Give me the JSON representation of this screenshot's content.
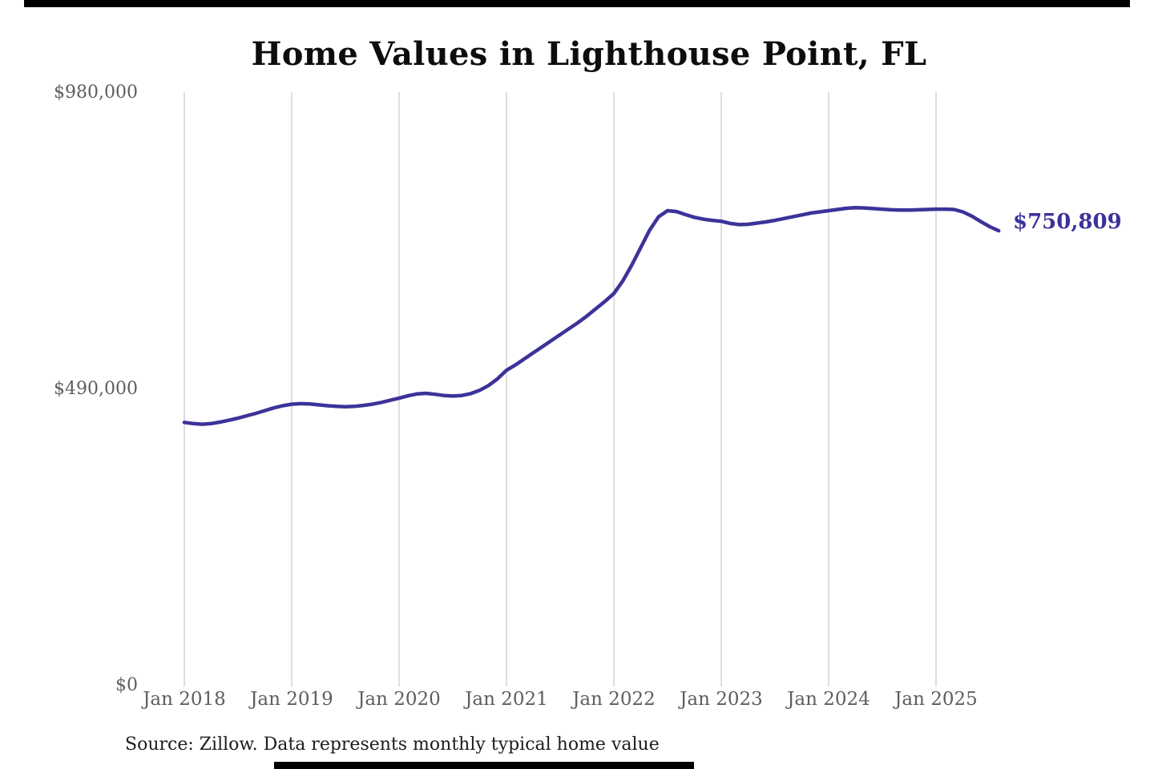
{
  "title": "Home Values in Lighthouse Point, FL",
  "source_note": "Source: Zillow. Data represents monthly typical home value",
  "end_label": "$750,809",
  "colors": {
    "line": "#3c3399",
    "grid": "#cccccc",
    "axis_text": "#5e5e5e",
    "title_text": "#0d0d0d",
    "source_text": "#1c1c1c",
    "border_bars": "#000000"
  },
  "chart_data": {
    "type": "line",
    "title": "Home Values in Lighthouse Point, FL",
    "x_tick_labels": [
      "Jan 2018",
      "Jan 2019",
      "Jan 2020",
      "Jan 2021",
      "Jan 2022",
      "Jan 2023",
      "Jan 2024",
      "Jan 2025"
    ],
    "y_tick_labels": [
      "$0",
      "$490,000",
      "$980,000"
    ],
    "y_ticks": [
      0,
      490000,
      980000
    ],
    "ylim": [
      0,
      980000
    ],
    "grid": "vertical-only",
    "legend": "none",
    "end_value": 750809,
    "end_value_label": "$750,809",
    "source": "Zillow",
    "series": [
      {
        "name": "Typical home value",
        "unit": "USD",
        "frequency": "monthly",
        "start": "2018-01",
        "end": "2025-08",
        "values": [
          434000,
          432000,
          431000,
          432000,
          434500,
          437500,
          441000,
          445000,
          449000,
          453500,
          458000,
          461500,
          464000,
          465000,
          464500,
          463000,
          461500,
          460500,
          460000,
          460500,
          462000,
          464000,
          467000,
          470500,
          474000,
          478000,
          481000,
          482000,
          480500,
          478500,
          477500,
          478500,
          481500,
          487000,
          495000,
          506000,
          520000,
          529000,
          539000,
          549000,
          559000,
          569000,
          579000,
          589000,
          599000,
          610000,
          622000,
          634000,
          647000,
          668000,
          694000,
          723000,
          752000,
          774000,
          784000,
          782500,
          777500,
          773000,
          770000,
          768000,
          766500,
          763000,
          761000,
          761500,
          763500,
          765500,
          768000,
          771000,
          774000,
          777000,
          780000,
          782000,
          784000,
          786000,
          788000,
          789000,
          788500,
          787500,
          786500,
          785500,
          785000,
          785000,
          785500,
          786000,
          786500,
          786500,
          786000,
          782000,
          775000,
          766000,
          757500,
          750809
        ]
      }
    ]
  }
}
